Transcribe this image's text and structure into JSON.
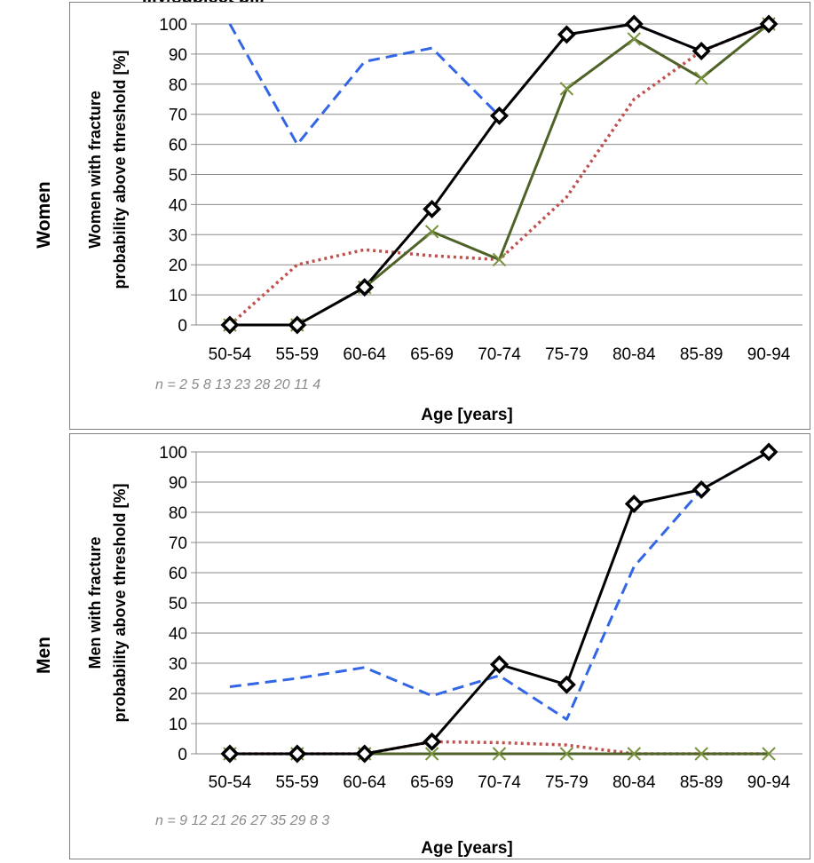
{
  "figure": {
    "title": "...y/subject p...",
    "row_labels": [
      "Women",
      "Men"
    ]
  },
  "chart_data": [
    {
      "type": "line",
      "panel": "Women",
      "categories": [
        "50-54",
        "55-59",
        "60-64",
        "65-69",
        "70-74",
        "75-79",
        "80-84",
        "85-89",
        "90-94"
      ],
      "ylabel_lines": [
        "Women with fracture",
        "probability above threshold [%]"
      ],
      "xlabel": "Age [years]",
      "n_label": "n = 2  5  8  13  23  28  20  11  4",
      "ylim": [
        0,
        100
      ],
      "yticks": [
        0,
        10,
        20,
        30,
        40,
        50,
        60,
        70,
        80,
        90,
        100
      ],
      "grid": true,
      "legend": "none",
      "series": [
        {
          "color": "#000000",
          "style": "solid",
          "marker": "diamond",
          "values": [
            0,
            0,
            12.5,
            38.5,
            69.5,
            96.5,
            100,
            91,
            100
          ]
        },
        {
          "color": "#3366e6",
          "style": "dashed",
          "marker": "none",
          "values": [
            100,
            60,
            87.5,
            92,
            69.5,
            96.5,
            100,
            91,
            100
          ]
        },
        {
          "color": "#c0504d",
          "style": "dotted",
          "marker": "none",
          "values": [
            0,
            20,
            25,
            23,
            21.7,
            42.5,
            75,
            91,
            100
          ]
        },
        {
          "color": "#4f6228",
          "style": "solid",
          "marker": "cross",
          "values": [
            0,
            0,
            12.5,
            31,
            21.7,
            78.5,
            95,
            82,
            100
          ]
        }
      ]
    },
    {
      "type": "line",
      "panel": "Men",
      "categories": [
        "50-54",
        "55-59",
        "60-64",
        "65-69",
        "70-74",
        "75-79",
        "80-84",
        "85-89",
        "90-94"
      ],
      "ylabel_lines": [
        "Men with fracture",
        "probability above threshold [%]"
      ],
      "xlabel": "Age [years]",
      "n_label": "n = 9  12  21  26  27  35  29  8  3",
      "ylim": [
        0,
        100
      ],
      "yticks": [
        0,
        10,
        20,
        30,
        40,
        50,
        60,
        70,
        80,
        90,
        100
      ],
      "grid": true,
      "legend": "none",
      "series": [
        {
          "color": "#000000",
          "style": "solid",
          "marker": "diamond",
          "values": [
            0,
            0,
            0,
            4,
            29.6,
            22.9,
            82.8,
            87.5,
            100
          ]
        },
        {
          "color": "#3366e6",
          "style": "dashed",
          "marker": "none",
          "values": [
            22.2,
            25,
            28.6,
            19.2,
            25.9,
            11.4,
            62,
            87.5,
            100
          ]
        },
        {
          "color": "#c0504d",
          "style": "dotted",
          "marker": "none",
          "values": [
            0,
            0,
            0,
            4,
            3.7,
            2.9,
            0,
            0,
            0
          ]
        },
        {
          "color": "#4f6228",
          "style": "solid",
          "marker": "cross",
          "values": [
            0,
            0,
            0,
            0,
            0,
            0,
            0,
            0,
            0
          ]
        }
      ]
    }
  ]
}
